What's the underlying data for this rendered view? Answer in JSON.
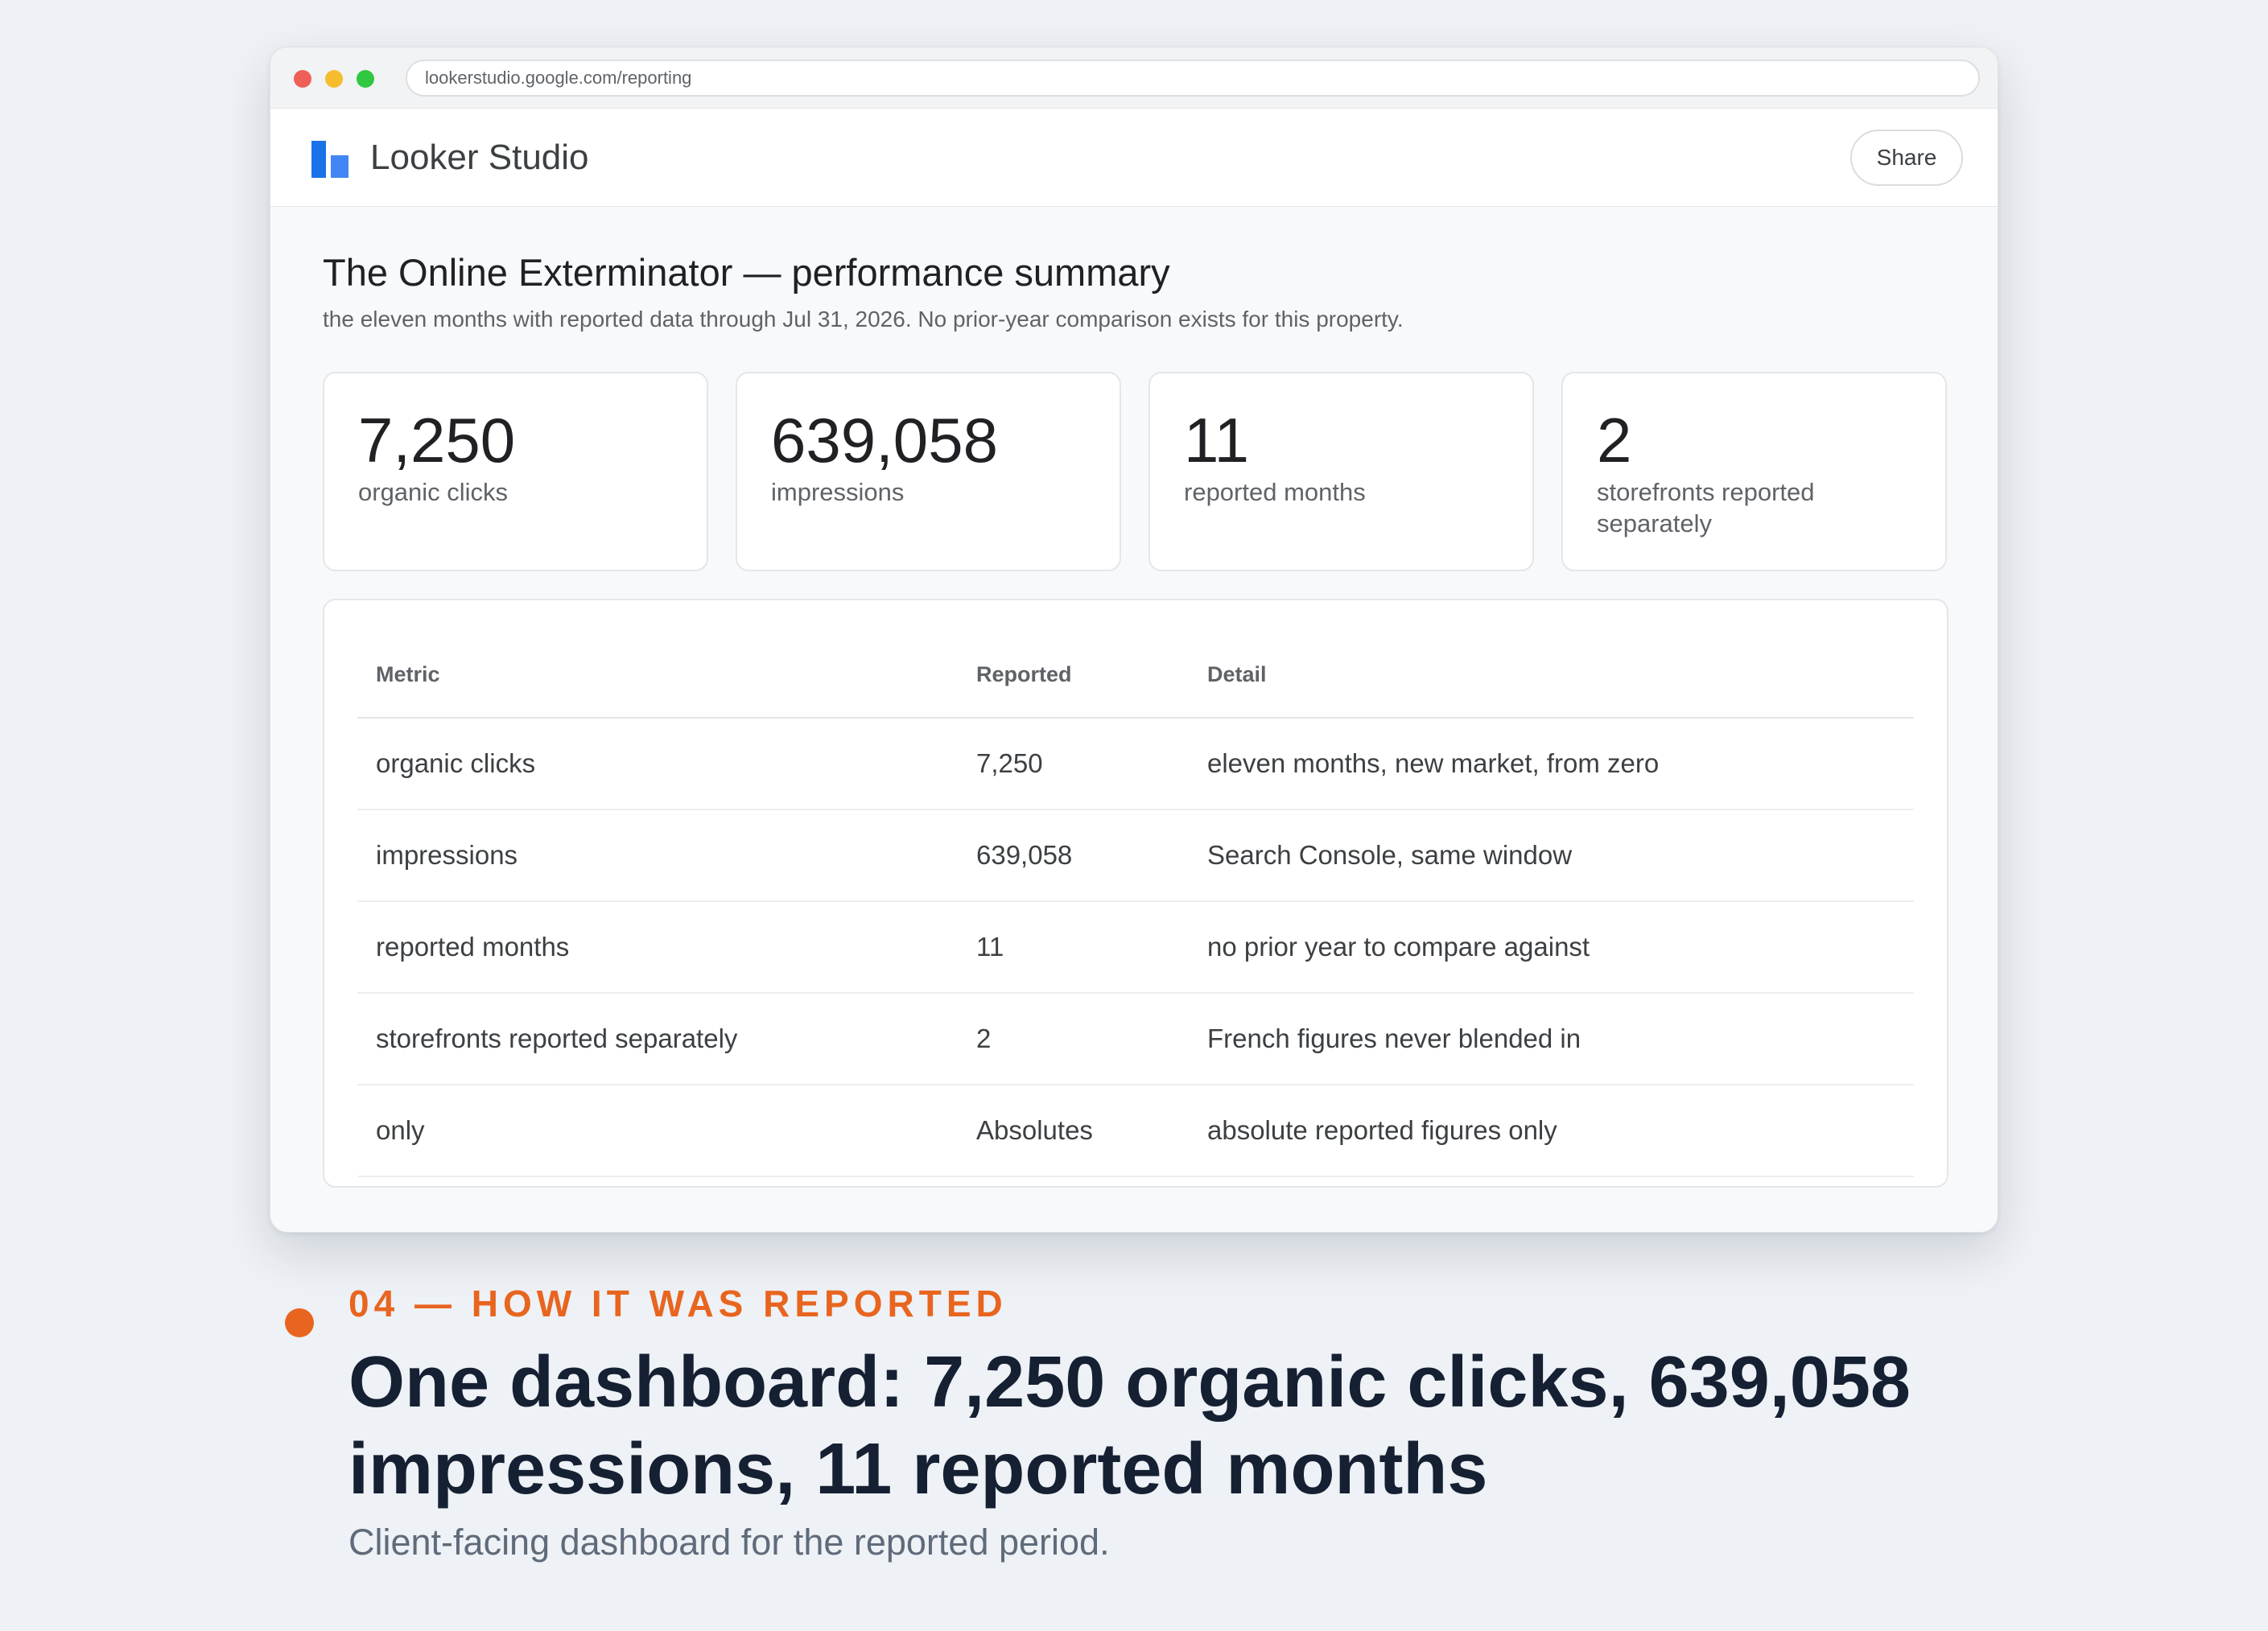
{
  "browser": {
    "url": "lookerstudio.google.com/reporting"
  },
  "app": {
    "name": "Looker Studio",
    "share_label": "Share",
    "logo_colors": [
      "#1a73e8",
      "#4285f4"
    ]
  },
  "report": {
    "title": "The Online Exterminator — performance summary",
    "subtitle": "the eleven months with reported data through Jul 31, 2026. No prior-year comparison exists for this property."
  },
  "kpis": [
    {
      "value": "7,250",
      "label": "organic clicks"
    },
    {
      "value": "639,058",
      "label": "impressions"
    },
    {
      "value": "11",
      "label": "reported months"
    },
    {
      "value": "2",
      "label": "storefronts reported separately"
    }
  ],
  "table": {
    "headers": [
      "Metric",
      "Reported",
      "Detail"
    ],
    "rows": [
      [
        "organic clicks",
        "7,250",
        "eleven months, new market, from zero"
      ],
      [
        "impressions",
        "639,058",
        "Search Console, same window"
      ],
      [
        "reported months",
        "11",
        "no prior year to compare against"
      ],
      [
        "storefronts reported separately",
        "2",
        "French figures never blended in"
      ],
      [
        "only",
        "Absolutes",
        "absolute reported figures only"
      ]
    ]
  },
  "caption": {
    "eyebrow": "04 — HOW IT WAS REPORTED",
    "headline": "One dashboard: 7,250 organic clicks, 639,058 impressions, 11 reported months",
    "subtitle": "Client-facing dashboard for the reported period.",
    "accent_color": "#e8651f"
  }
}
